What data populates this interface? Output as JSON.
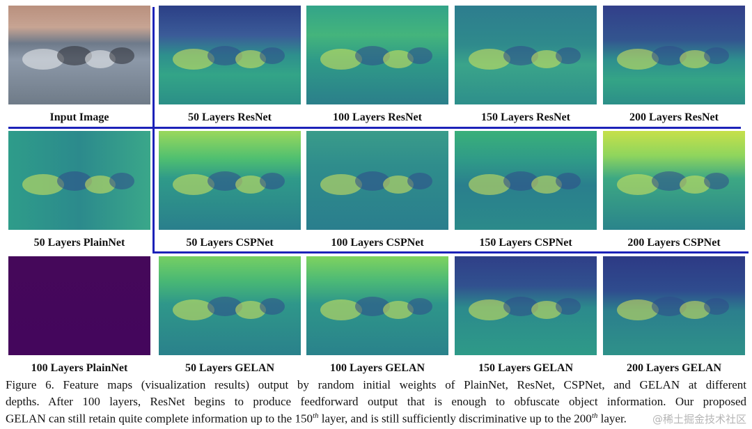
{
  "panels": [
    [
      "Input Image",
      "50 Layers ResNet",
      "100 Layers ResNet",
      "150 Layers ResNet",
      "200 Layers ResNet"
    ],
    [
      "50 Layers PlainNet",
      "50 Layers CSPNet",
      "100 Layers CSPNet",
      "150 Layers CSPNet",
      "200 Layers CSPNet"
    ],
    [
      "100 Layers PlainNet",
      "50 Layers GELAN",
      "100 Layers GELAN",
      "150 Layers GELAN",
      "200 Layers GELAN"
    ]
  ],
  "caption": {
    "lines": [
      "Figure 6. Feature maps (visualization results) output by random initial weights of PlainNet, ResNet, CSPNet, and GELAN at different",
      "depths. After 100 layers, ResNet begins to produce feedforward output that is enough to obfuscate object information. Our proposed"
    ],
    "last_line": [
      "GELAN can still retain quite complete information up to the 150",
      "th",
      " layer, and is still sufficiently discriminative up to the 200",
      "th",
      " layer."
    ]
  },
  "watermark": "@稀土掘金技术社区"
}
